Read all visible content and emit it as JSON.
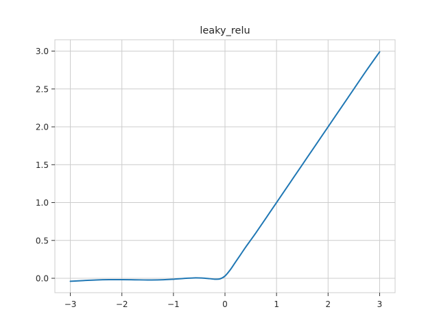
{
  "chart_data": {
    "type": "line",
    "title": "leaky_relu",
    "xlabel": "",
    "ylabel": "",
    "xlim": [
      -3.3,
      3.3
    ],
    "ylim": [
      -0.19,
      3.15
    ],
    "grid": true,
    "x_ticks": [
      -3,
      -2,
      -1,
      0,
      1,
      2,
      3
    ],
    "x_tick_labels": [
      "−3",
      "−2",
      "−1",
      "0",
      "1",
      "2",
      "3"
    ],
    "y_ticks": [
      0.0,
      0.5,
      1.0,
      1.5,
      2.0,
      2.5,
      3.0
    ],
    "y_tick_labels": [
      "0.0",
      "0.5",
      "1.0",
      "1.5",
      "2.0",
      "2.5",
      "3.0"
    ],
    "series": [
      {
        "color": "#1f77b4",
        "x": [
          -3.0,
          -2.75,
          -2.5,
          -2.25,
          -2.0,
          -1.75,
          -1.5,
          -1.25,
          -1.0,
          -0.8,
          -0.6,
          -0.45,
          -0.3,
          -0.2,
          -0.1,
          0.0,
          0.1,
          0.2,
          0.3,
          0.4,
          0.5,
          0.6,
          0.8,
          1.0,
          1.25,
          1.5,
          1.75,
          2.0,
          2.25,
          2.5,
          2.75,
          3.0
        ],
        "y": [
          -0.04,
          -0.03,
          -0.022,
          -0.018,
          -0.018,
          -0.02,
          -0.022,
          -0.02,
          -0.012,
          -0.002,
          0.005,
          0.003,
          -0.005,
          -0.012,
          -0.008,
          0.03,
          0.11,
          0.21,
          0.31,
          0.41,
          0.505,
          0.6,
          0.8,
          1.0,
          1.25,
          1.5,
          1.75,
          2.0,
          2.25,
          2.5,
          2.75,
          2.99
        ]
      }
    ]
  }
}
